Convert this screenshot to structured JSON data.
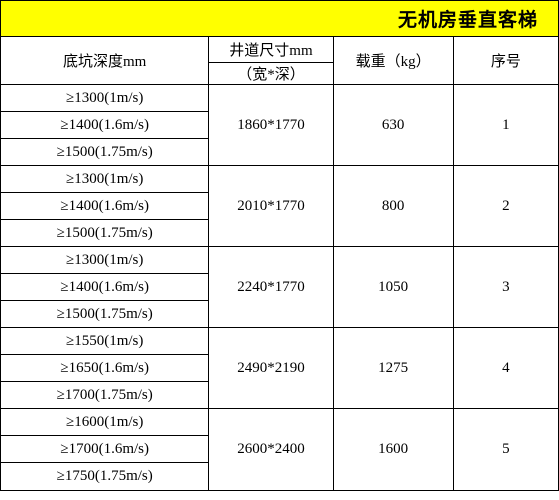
{
  "title": "无机房垂直客梯",
  "header": {
    "pit": "底坑深度mm",
    "hoist_top": "井道尺寸mm",
    "hoist_bot": "（宽*深）",
    "load": "载重（kg）",
    "id": "序号"
  },
  "groups": [
    {
      "id": "1",
      "load": "630",
      "hoist": "1860*1770",
      "pits": [
        "≥1300(1m/s)",
        "≥1400(1.6m/s)",
        "≥1500(1.75m/s)"
      ]
    },
    {
      "id": "2",
      "load": "800",
      "hoist": "2010*1770",
      "pits": [
        "≥1300(1m/s)",
        "≥1400(1.6m/s)",
        "≥1500(1.75m/s)"
      ]
    },
    {
      "id": "3",
      "load": "1050",
      "hoist": "2240*1770",
      "pits": [
        "≥1300(1m/s)",
        "≥1400(1.6m/s)",
        "≥1500(1.75m/s)"
      ]
    },
    {
      "id": "4",
      "load": "1275",
      "hoist": "2490*2190",
      "pits": [
        "≥1550(1m/s)",
        "≥1650(1.6m/s)",
        "≥1700(1.75m/s)"
      ]
    },
    {
      "id": "5",
      "load": "1600",
      "hoist": "2600*2400",
      "pits": [
        "≥1600(1m/s)",
        "≥1700(1.6m/s)",
        "≥1750(1.75m/s)"
      ]
    }
  ],
  "style": {
    "title_bg": "#ffff00",
    "border_color": "#000000",
    "bg": "#ffffff",
    "font_family": "SimSun",
    "title_fontsize": 19,
    "cell_fontsize": 15
  }
}
